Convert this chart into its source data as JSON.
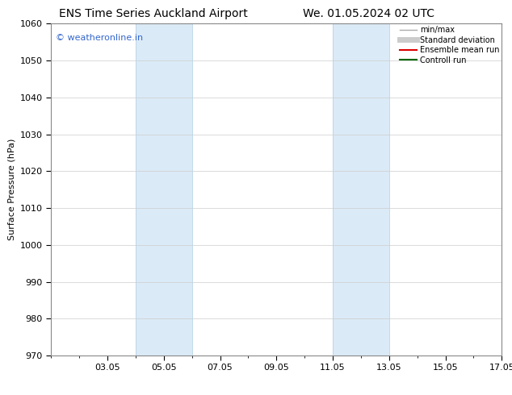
{
  "title_left": "ENS Time Series Auckland Airport",
  "title_right": "We. 01.05.2024 02 UTC",
  "ylabel": "Surface Pressure (hPa)",
  "ylim": [
    970,
    1060
  ],
  "yticks": [
    970,
    980,
    990,
    1000,
    1010,
    1020,
    1030,
    1040,
    1050,
    1060
  ],
  "xlim": [
    1.0,
    17.0
  ],
  "xtick_labels": [
    "03.05",
    "05.05",
    "07.05",
    "09.05",
    "11.05",
    "13.05",
    "15.05",
    "17.05"
  ],
  "xtick_positions": [
    3,
    5,
    7,
    9,
    11,
    13,
    15,
    17
  ],
  "x_minor_positions": [
    1,
    2,
    3,
    4,
    5,
    6,
    7,
    8,
    9,
    10,
    11,
    12,
    13,
    14,
    15,
    16,
    17
  ],
  "shaded_bands": [
    {
      "xmin": 4.0,
      "xmax": 6.0
    },
    {
      "xmin": 11.0,
      "xmax": 13.0
    }
  ],
  "shaded_color": "#dbeaf7",
  "watermark_text": "© weatheronline.in",
  "watermark_color": "#3366cc",
  "watermark_fontsize": 8,
  "legend_items": [
    {
      "label": "min/max",
      "color": "#aaaaaa",
      "lw": 1.0
    },
    {
      "label": "Standard deviation",
      "color": "#cccccc",
      "lw": 5.0
    },
    {
      "label": "Ensemble mean run",
      "color": "#dd0000",
      "lw": 1.5
    },
    {
      "label": "Controll run",
      "color": "#006600",
      "lw": 1.5
    }
  ],
  "bg_color": "#ffffff",
  "grid_color": "#cccccc",
  "title_fontsize": 10,
  "axis_fontsize": 8,
  "ylabel_fontsize": 8,
  "legend_fontsize": 7
}
